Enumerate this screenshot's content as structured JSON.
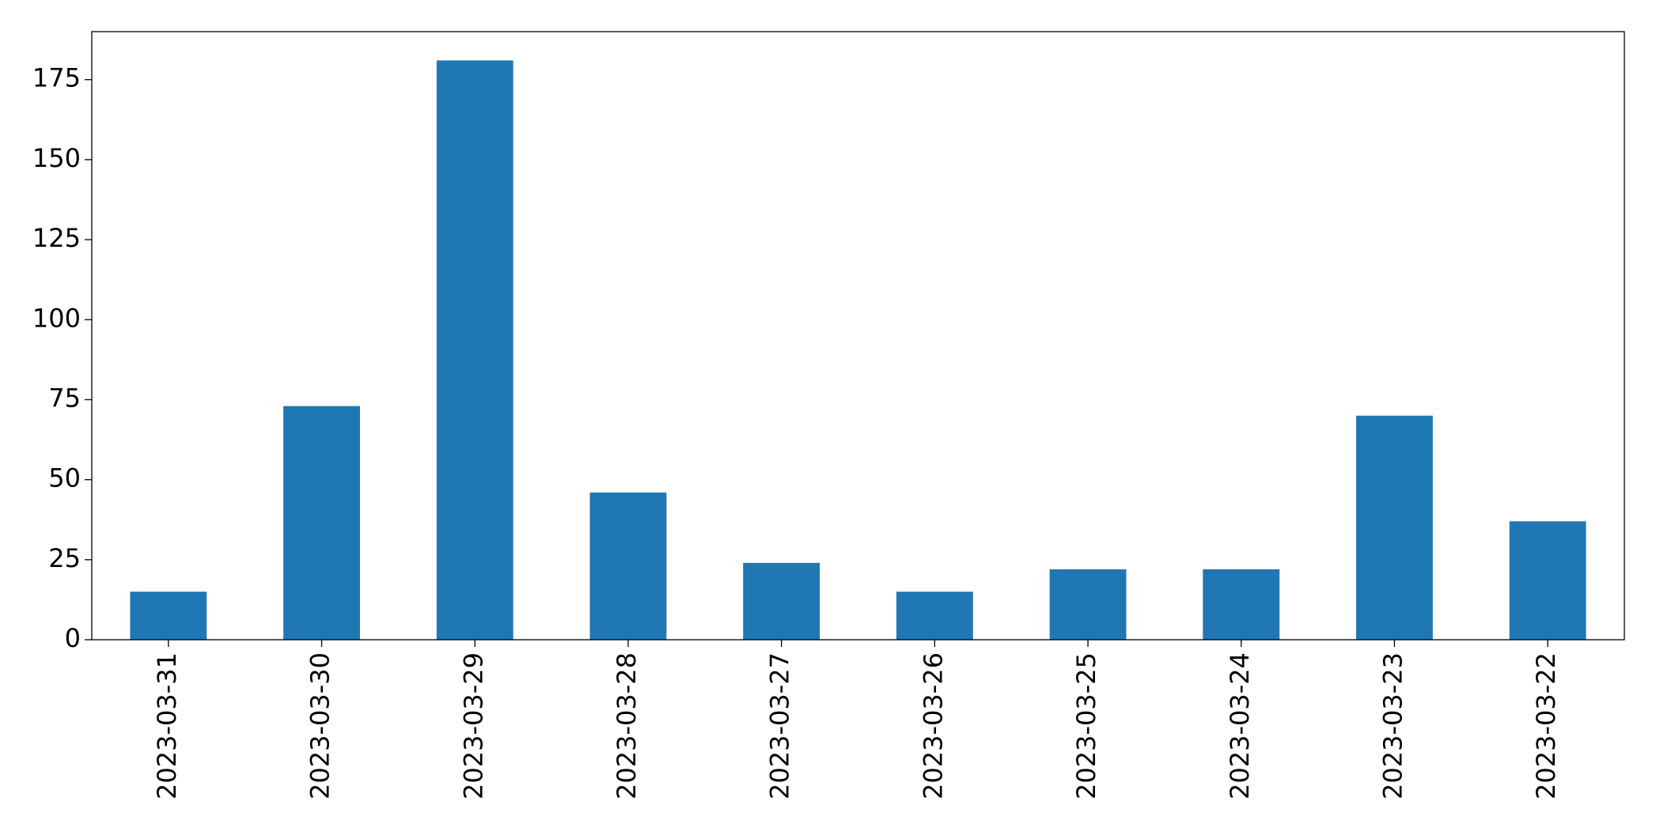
{
  "chart_data": {
    "type": "bar",
    "categories": [
      "2023-03-31",
      "2023-03-30",
      "2023-03-29",
      "2023-03-28",
      "2023-03-27",
      "2023-03-26",
      "2023-03-25",
      "2023-03-24",
      "2023-03-23",
      "2023-03-22"
    ],
    "values": [
      15,
      73,
      181,
      46,
      24,
      15,
      22,
      22,
      70,
      37
    ],
    "color": "#1f77b4",
    "ylim": [
      0,
      190
    ],
    "yticks": [
      0,
      25,
      50,
      75,
      100,
      125,
      150,
      175
    ],
    "grid": false
  }
}
